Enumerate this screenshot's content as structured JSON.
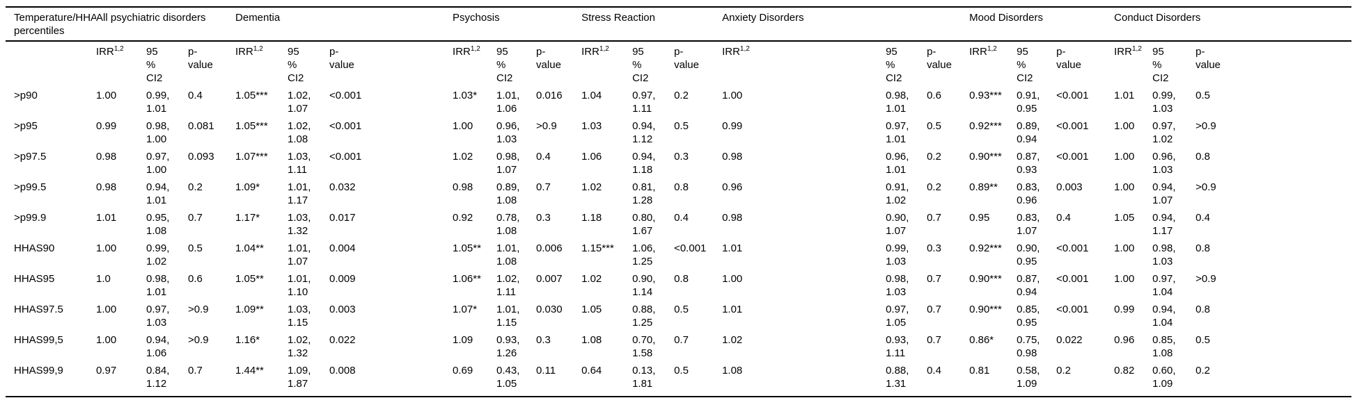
{
  "table": {
    "row_header_label": "Temperature/HHAS percentiles",
    "subheaders": {
      "irr": "IRR",
      "irr_sup": "1,2",
      "ci_lines": [
        "95",
        "%",
        "CI2"
      ],
      "p_lines": [
        "p-",
        "value"
      ]
    },
    "groups": [
      {
        "label": "All psychiatric disorders"
      },
      {
        "label": "Dementia"
      },
      {
        "label": "Psychosis"
      },
      {
        "label": "Stress Reaction"
      },
      {
        "label": "Anxiety Disorders"
      },
      {
        "label": "Mood Disorders"
      },
      {
        "label": "Conduct Disorders"
      }
    ],
    "rows": [
      {
        "label": ">p90",
        "cells": [
          {
            "irr": "1.00",
            "ci": [
              "0.99,",
              "1.01"
            ],
            "p": "0.4"
          },
          {
            "irr": "1.05***",
            "ci": [
              "1.02,",
              "1.07"
            ],
            "p": "<0.001"
          },
          {
            "irr": "1.03*",
            "ci": [
              "1.01,",
              "1.06"
            ],
            "p": "0.016"
          },
          {
            "irr": "1.04",
            "ci": [
              "0.97,",
              "1.11"
            ],
            "p": "0.2"
          },
          {
            "irr": "1.00",
            "ci": [
              "0.98,",
              "1.01"
            ],
            "p": "0.6"
          },
          {
            "irr": "0.93***",
            "ci": [
              "0.91,",
              "0.95"
            ],
            "p": "<0.001"
          },
          {
            "irr": "1.01",
            "ci": [
              "0.99,",
              "1.03"
            ],
            "p": "0.5"
          }
        ]
      },
      {
        "label": ">p95",
        "cells": [
          {
            "irr": "0.99",
            "ci": [
              "0.98,",
              "1.00"
            ],
            "p": "0.081"
          },
          {
            "irr": "1.05***",
            "ci": [
              "1.02,",
              "1.08"
            ],
            "p": "<0.001"
          },
          {
            "irr": "1.00",
            "ci": [
              "0.96,",
              "1.03"
            ],
            "p": ">0.9"
          },
          {
            "irr": "1.03",
            "ci": [
              "0.94,",
              "1.12"
            ],
            "p": "0.5"
          },
          {
            "irr": "0.99",
            "ci": [
              "0.97,",
              "1.01"
            ],
            "p": "0.5"
          },
          {
            "irr": "0.92***",
            "ci": [
              "0.89,",
              "0.94"
            ],
            "p": "<0.001"
          },
          {
            "irr": "1.00",
            "ci": [
              "0.97,",
              "1.02"
            ],
            "p": ">0.9"
          }
        ]
      },
      {
        "label": ">p97.5",
        "cells": [
          {
            "irr": "0.98",
            "ci": [
              "0.97,",
              "1.00"
            ],
            "p": "0.093"
          },
          {
            "irr": "1.07***",
            "ci": [
              "1.03,",
              "1.11"
            ],
            "p": "<0.001"
          },
          {
            "irr": "1.02",
            "ci": [
              "0.98,",
              "1.07"
            ],
            "p": "0.4"
          },
          {
            "irr": "1.06",
            "ci": [
              "0.94,",
              "1.18"
            ],
            "p": "0.3"
          },
          {
            "irr": "0.98",
            "ci": [
              "0.96,",
              "1.01"
            ],
            "p": "0.2"
          },
          {
            "irr": "0.90***",
            "ci": [
              "0.87,",
              "0.93"
            ],
            "p": "<0.001"
          },
          {
            "irr": "1.00",
            "ci": [
              "0.96,",
              "1.03"
            ],
            "p": "0.8"
          }
        ]
      },
      {
        "label": ">p99.5",
        "cells": [
          {
            "irr": "0.98",
            "ci": [
              "0.94,",
              "1.01"
            ],
            "p": "0.2"
          },
          {
            "irr": "1.09*",
            "ci": [
              "1.01,",
              "1.17"
            ],
            "p": "0.032"
          },
          {
            "irr": "0.98",
            "ci": [
              "0.89,",
              "1.08"
            ],
            "p": "0.7"
          },
          {
            "irr": "1.02",
            "ci": [
              "0.81,",
              "1.28"
            ],
            "p": "0.8"
          },
          {
            "irr": "0.96",
            "ci": [
              "0.91,",
              "1.02"
            ],
            "p": "0.2"
          },
          {
            "irr": "0.89**",
            "ci": [
              "0.83,",
              "0.96"
            ],
            "p": "0.003"
          },
          {
            "irr": "1.00",
            "ci": [
              "0.94,",
              "1.07"
            ],
            "p": ">0.9"
          }
        ]
      },
      {
        "label": ">p99.9",
        "cells": [
          {
            "irr": "1.01",
            "ci": [
              "0.95,",
              "1.08"
            ],
            "p": "0.7"
          },
          {
            "irr": "1.17*",
            "ci": [
              "1.03,",
              "1.32"
            ],
            "p": "0.017"
          },
          {
            "irr": "0.92",
            "ci": [
              "0.78,",
              "1.08"
            ],
            "p": "0.3"
          },
          {
            "irr": "1.18",
            "ci": [
              "0.80,",
              "1.67"
            ],
            "p": "0.4"
          },
          {
            "irr": "0.98",
            "ci": [
              "0.90,",
              "1.07"
            ],
            "p": "0.7"
          },
          {
            "irr": "0.95",
            "ci": [
              "0.83,",
              "1.07"
            ],
            "p": "0.4"
          },
          {
            "irr": "1.05",
            "ci": [
              "0.94,",
              "1.17"
            ],
            "p": "0.4"
          }
        ]
      },
      {
        "label": "HHAS90",
        "cells": [
          {
            "irr": "1.00",
            "ci": [
              "0.99,",
              "1.02"
            ],
            "p": "0.5"
          },
          {
            "irr": "1.04**",
            "ci": [
              "1.01,",
              "1.07"
            ],
            "p": "0.004"
          },
          {
            "irr": "1.05**",
            "ci": [
              "1.01,",
              "1.08"
            ],
            "p": "0.006"
          },
          {
            "irr": "1.15***",
            "ci": [
              "1.06,",
              "1.25"
            ],
            "p": "<0.001"
          },
          {
            "irr": "1.01",
            "ci": [
              "0.99,",
              "1.03"
            ],
            "p": "0.3"
          },
          {
            "irr": "0.92***",
            "ci": [
              "0.90,",
              "0.95"
            ],
            "p": "<0.001"
          },
          {
            "irr": "1.00",
            "ci": [
              "0.98,",
              "1.03"
            ],
            "p": "0.8"
          }
        ]
      },
      {
        "label": "HHAS95",
        "cells": [
          {
            "irr": "1.0",
            "ci": [
              "0.98,",
              "1.01"
            ],
            "p": "0.6"
          },
          {
            "irr": "1.05**",
            "ci": [
              "1.01,",
              "1.10"
            ],
            "p": "0.009"
          },
          {
            "irr": "1.06**",
            "ci": [
              "1.02,",
              "1.11"
            ],
            "p": "0.007"
          },
          {
            "irr": "1.02",
            "ci": [
              "0.90,",
              "1.14"
            ],
            "p": "0.8"
          },
          {
            "irr": "1.00",
            "ci": [
              "0.98,",
              "1.03"
            ],
            "p": "0.7"
          },
          {
            "irr": "0.90***",
            "ci": [
              "0.87,",
              "0.94"
            ],
            "p": "<0.001"
          },
          {
            "irr": "1.00",
            "ci": [
              "0.97,",
              "1.04"
            ],
            "p": ">0.9"
          }
        ]
      },
      {
        "label": "HHAS97.5",
        "cells": [
          {
            "irr": "1.00",
            "ci": [
              "0.97,",
              "1.03"
            ],
            "p": ">0.9"
          },
          {
            "irr": "1.09**",
            "ci": [
              "1.03,",
              "1.15"
            ],
            "p": "0.003"
          },
          {
            "irr": "1.07*",
            "ci": [
              "1.01,",
              "1.15"
            ],
            "p": "0.030"
          },
          {
            "irr": "1.05",
            "ci": [
              "0.88,",
              "1.25"
            ],
            "p": "0.5"
          },
          {
            "irr": "1.01",
            "ci": [
              "0.97,",
              "1.05"
            ],
            "p": "0.7"
          },
          {
            "irr": "0.90***",
            "ci": [
              "0.85,",
              "0.95"
            ],
            "p": "<0.001"
          },
          {
            "irr": "0.99",
            "ci": [
              "0.94,",
              "1.04"
            ],
            "p": "0.8"
          }
        ]
      },
      {
        "label": "HHAS99,5",
        "cells": [
          {
            "irr": "1.00",
            "ci": [
              "0.94,",
              "1.06"
            ],
            "p": ">0.9"
          },
          {
            "irr": "1.16*",
            "ci": [
              "1.02,",
              "1.32"
            ],
            "p": "0.022"
          },
          {
            "irr": "1.09",
            "ci": [
              "0.93,",
              "1.26"
            ],
            "p": "0.3"
          },
          {
            "irr": "1.08",
            "ci": [
              "0.70,",
              "1.58"
            ],
            "p": "0.7"
          },
          {
            "irr": "1.02",
            "ci": [
              "0.93,",
              "1.11"
            ],
            "p": "0.7"
          },
          {
            "irr": "0.86*",
            "ci": [
              "0.75,",
              "0.98"
            ],
            "p": "0.022"
          },
          {
            "irr": "0.96",
            "ci": [
              "0.85,",
              "1.08"
            ],
            "p": "0.5"
          }
        ]
      },
      {
        "label": "HHAS99,9",
        "cells": [
          {
            "irr": "0.97",
            "ci": [
              "0.84,",
              "1.12"
            ],
            "p": "0.7"
          },
          {
            "irr": "1.44**",
            "ci": [
              "1.09,",
              "1.87"
            ],
            "p": "0.008"
          },
          {
            "irr": "0.69",
            "ci": [
              "0.43,",
              "1.05"
            ],
            "p": "0.11"
          },
          {
            "irr": "0.64",
            "ci": [
              "0.13,",
              "1.81"
            ],
            "p": "0.5"
          },
          {
            "irr": "1.08",
            "ci": [
              "0.88,",
              "1.31"
            ],
            "p": "0.4"
          },
          {
            "irr": "0.81",
            "ci": [
              "0.58,",
              "1.09"
            ],
            "p": "0.2"
          },
          {
            "irr": "0.82",
            "ci": [
              "0.60,",
              "1.09"
            ],
            "p": "0.2"
          }
        ]
      }
    ]
  }
}
